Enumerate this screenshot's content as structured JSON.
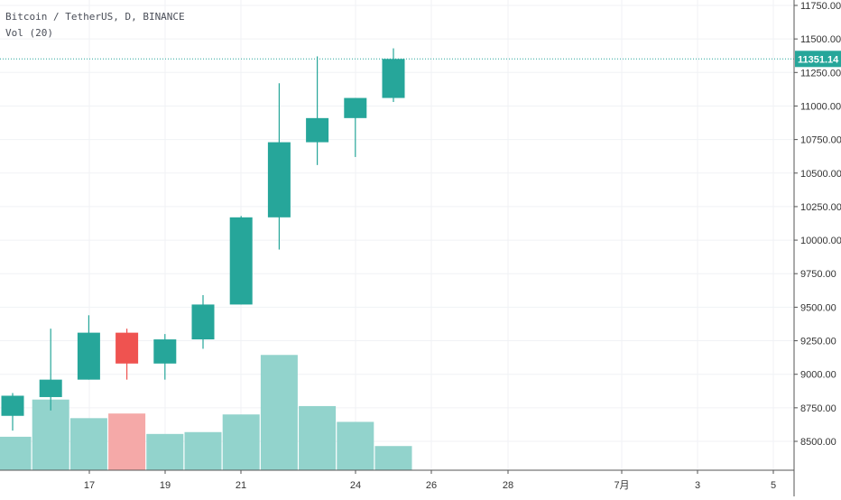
{
  "legend": {
    "symbol": "Bitcoin / TetherUS, D, BINANCE",
    "volume": "Vol (20)"
  },
  "last_price_label": "11351.14",
  "colors": {
    "up": "#26a69a",
    "down": "#ef5350",
    "vol_up": "#92d3cc",
    "vol_down": "#f5a9a8",
    "grid": "#f0f2f5",
    "last_line": "#26a69a"
  },
  "chart_data": {
    "type": "candlestick",
    "symbol": "Bitcoin / TetherUS",
    "interval": "D",
    "exchange": "BINANCE",
    "x_tick_labels": [
      "17",
      "19",
      "21",
      "24",
      "26",
      "28",
      "7月",
      "3",
      "5"
    ],
    "y_tick_labels": [
      "8500.00",
      "8750.00",
      "9000.00",
      "9250.00",
      "9500.00",
      "9750.00",
      "10000.00",
      "10250.00",
      "10500.00",
      "10750.00",
      "11000.00",
      "11250.00",
      "11500.00",
      "11750.00"
    ],
    "y_range": [
      8380,
      11820
    ],
    "grid": true,
    "last_price": 11351.14,
    "candles": [
      {
        "date": "2019-06-15",
        "open": 8690,
        "high": 8860,
        "low": 8580,
        "close": 8840
      },
      {
        "date": "2019-06-16",
        "open": 8830,
        "high": 9340,
        "low": 8730,
        "close": 8960
      },
      {
        "date": "2019-06-17",
        "open": 8960,
        "high": 9440,
        "low": 8960,
        "close": 9310
      },
      {
        "date": "2019-06-18",
        "open": 9310,
        "high": 9340,
        "low": 8960,
        "close": 9080
      },
      {
        "date": "2019-06-19",
        "open": 9080,
        "high": 9300,
        "low": 8960,
        "close": 9260
      },
      {
        "date": "2019-06-20",
        "open": 9260,
        "high": 9590,
        "low": 9190,
        "close": 9520
      },
      {
        "date": "2019-06-21",
        "open": 9520,
        "high": 10180,
        "low": 9520,
        "close": 10170
      },
      {
        "date": "2019-06-22",
        "open": 10170,
        "high": 11170,
        "low": 9930,
        "close": 10730
      },
      {
        "date": "2019-06-23",
        "open": 10730,
        "high": 11370,
        "low": 10560,
        "close": 10910
      },
      {
        "date": "2019-06-24",
        "open": 10910,
        "high": 11060,
        "low": 10620,
        "close": 11060
      },
      {
        "date": "2019-06-25",
        "open": 11060,
        "high": 11430,
        "low": 11030,
        "close": 11351.14
      }
    ],
    "volume_series": {
      "name": "Vol (20)",
      "values": [
        36,
        76,
        56,
        61,
        39,
        41,
        60,
        124,
        69,
        52,
        26
      ],
      "directions": [
        "up",
        "up",
        "up",
        "down",
        "up",
        "up",
        "up",
        "up",
        "up",
        "up",
        "up"
      ]
    }
  }
}
